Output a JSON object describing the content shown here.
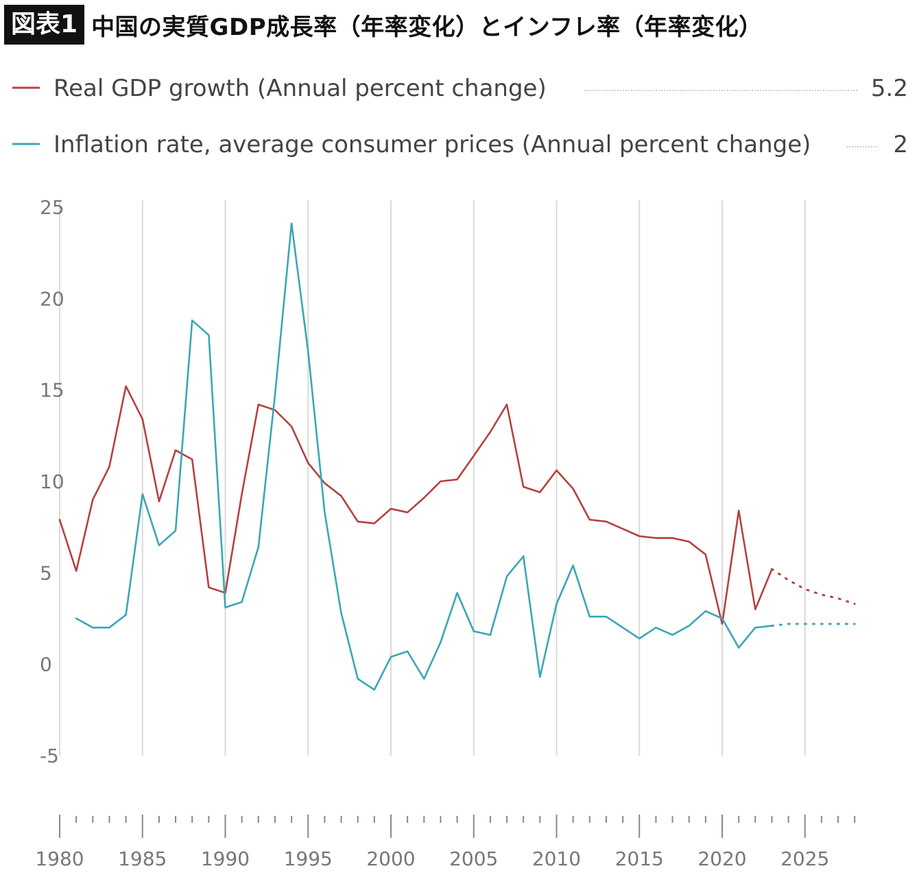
{
  "header": {
    "badge": "図表1",
    "title": "中国の実質GDP成長率（年率変化）とインフレ率（年率変化）"
  },
  "colors": {
    "gdp": "#b5403f",
    "inflation": "#3aa6b6",
    "grid": "#d9d9d9",
    "axis_text": "#777777"
  },
  "chart_data": {
    "type": "line",
    "title": "",
    "xlabel": "",
    "ylabel": "",
    "xlim": [
      1980,
      2028
    ],
    "ylim": [
      -5,
      25
    ],
    "y_ticks": [
      25,
      20,
      15,
      10,
      5,
      0,
      -5
    ],
    "x_tick_labels": [
      "1980",
      "1985",
      "1990",
      "1995",
      "2000",
      "2005",
      "2010",
      "2015",
      "2020",
      "2025"
    ],
    "grid": "vertical",
    "legend": "top",
    "series": [
      {
        "name": "Real GDP growth (Annual percent change)",
        "last_value_label": "5.2",
        "x": [
          1980,
          1981,
          1982,
          1983,
          1984,
          1985,
          1986,
          1987,
          1988,
          1989,
          1990,
          1991,
          1992,
          1993,
          1994,
          1995,
          1996,
          1997,
          1998,
          1999,
          2000,
          2001,
          2002,
          2003,
          2004,
          2005,
          2006,
          2007,
          2008,
          2009,
          2010,
          2011,
          2012,
          2013,
          2014,
          2015,
          2016,
          2017,
          2018,
          2019,
          2020,
          2021,
          2022,
          2023
        ],
        "values": [
          7.9,
          5.1,
          9.0,
          10.8,
          15.2,
          13.4,
          8.9,
          11.7,
          11.2,
          4.2,
          3.9,
          9.3,
          14.2,
          13.9,
          13.0,
          11.0,
          9.9,
          9.2,
          7.8,
          7.7,
          8.5,
          8.3,
          9.1,
          10.0,
          10.1,
          11.4,
          12.7,
          14.2,
          9.7,
          9.4,
          10.6,
          9.6,
          7.9,
          7.8,
          7.4,
          7.0,
          6.9,
          6.9,
          6.7,
          6.0,
          2.2,
          8.4,
          3.0,
          5.2
        ],
        "projection_x": [
          2023,
          2024,
          2025,
          2026,
          2027,
          2028
        ],
        "projection_values": [
          5.2,
          4.6,
          4.1,
          3.8,
          3.6,
          3.3
        ]
      },
      {
        "name": "Inflation rate, average consumer prices (Annual percent change)",
        "last_value_label": "2",
        "x": [
          1981,
          1982,
          1983,
          1984,
          1985,
          1986,
          1987,
          1988,
          1989,
          1990,
          1991,
          1992,
          1993,
          1994,
          1995,
          1996,
          1997,
          1998,
          1999,
          2000,
          2001,
          2002,
          2003,
          2004,
          2005,
          2006,
          2007,
          2008,
          2009,
          2010,
          2011,
          2012,
          2013,
          2014,
          2015,
          2016,
          2017,
          2018,
          2019,
          2020,
          2021,
          2022,
          2023
        ],
        "values": [
          2.5,
          2.0,
          2.0,
          2.7,
          9.3,
          6.5,
          7.3,
          18.8,
          18.0,
          3.1,
          3.4,
          6.4,
          14.7,
          24.1,
          17.1,
          8.3,
          2.8,
          -0.8,
          -1.4,
          0.4,
          0.7,
          -0.8,
          1.2,
          3.9,
          1.8,
          1.6,
          4.8,
          5.9,
          -0.7,
          3.3,
          5.4,
          2.6,
          2.6,
          2.0,
          1.4,
          2.0,
          1.6,
          2.1,
          2.9,
          2.5,
          0.9,
          2.0,
          2.1
        ],
        "projection_x": [
          2023,
          2024,
          2025,
          2026,
          2027,
          2028
        ],
        "projection_values": [
          2.1,
          2.2,
          2.2,
          2.2,
          2.2,
          2.2
        ]
      }
    ]
  }
}
